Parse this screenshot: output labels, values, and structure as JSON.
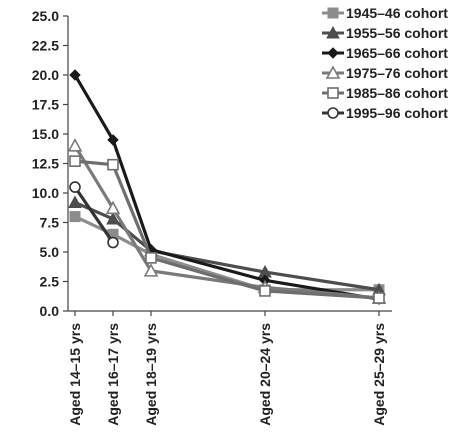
{
  "chart_data": {
    "type": "line",
    "categories": [
      "Aged 14–15 yrs",
      "Aged 16–17 yrs",
      "Aged 18–19 yrs",
      "Aged 20–24 yrs",
      "Aged 25–29 yrs"
    ],
    "x_positions": [
      1,
      2,
      3,
      6,
      9
    ],
    "ylim": [
      0,
      25
    ],
    "yticks": [
      "0.0",
      "2.5",
      "5.0",
      "7.5",
      "10.0",
      "12.5",
      "15.0",
      "17.5",
      "20.0",
      "22.5",
      "25.0"
    ],
    "grid": false,
    "legend_position": "top-right",
    "title": "",
    "xlabel": "",
    "ylabel": "",
    "series": [
      {
        "name": "1945–46 cohort",
        "color": "#8c8c8c",
        "marker": "square-filled",
        "values": [
          8.0,
          6.5,
          4.8,
          1.8,
          1.8
        ]
      },
      {
        "name": "1955–56 cohort",
        "color": "#4d4d4d",
        "marker": "triangle-filled",
        "values": [
          9.2,
          7.8,
          5.1,
          3.3,
          1.8
        ]
      },
      {
        "name": "1965–66 cohort",
        "color": "#1a1a1a",
        "marker": "diamond-filled",
        "values": [
          20.0,
          14.5,
          5.2,
          2.6,
          1.0
        ]
      },
      {
        "name": "1975–76 cohort",
        "color": "#7a7a7a",
        "marker": "triangle-open",
        "values": [
          14.0,
          8.7,
          3.4,
          2.0,
          1.1
        ]
      },
      {
        "name": "1985–86 cohort",
        "color": "#6e6e6e",
        "marker": "square-open",
        "values": [
          12.7,
          12.4,
          4.5,
          1.7,
          1.1
        ]
      },
      {
        "name": "1995–96 cohort",
        "color": "#333333",
        "marker": "circle-open",
        "values": [
          10.5,
          5.8,
          null,
          null,
          null
        ]
      }
    ]
  }
}
